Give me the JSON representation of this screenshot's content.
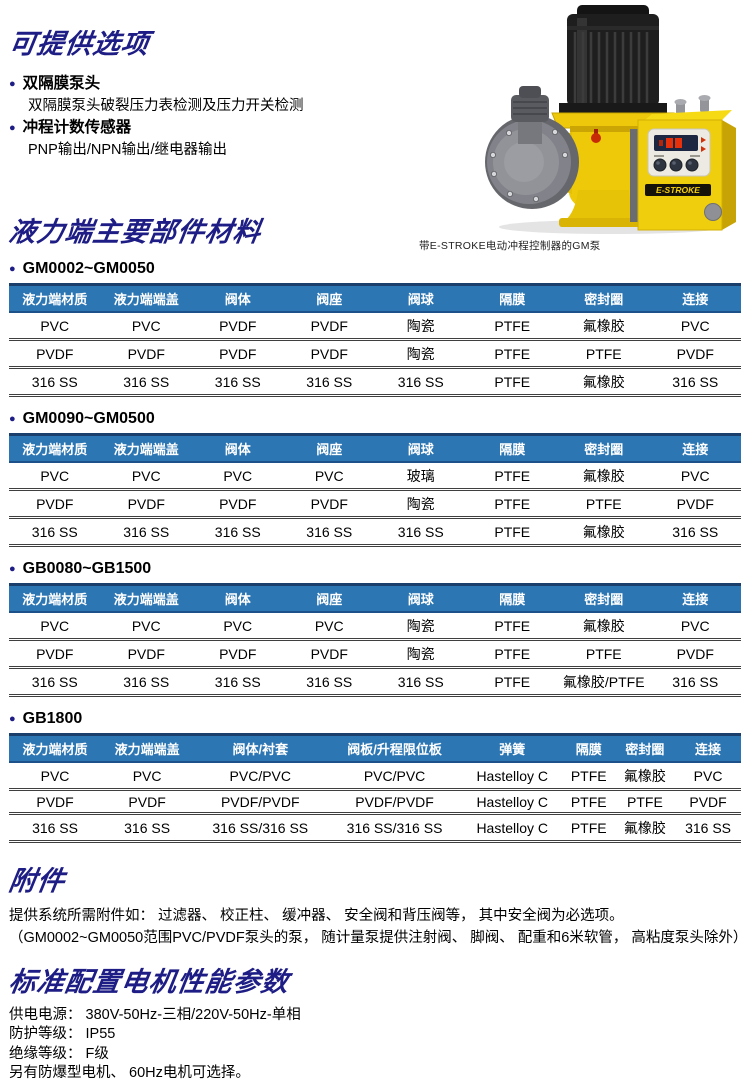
{
  "colors": {
    "title_navy": "#1d1d85",
    "header_blue": "#2d76b4",
    "header_border": "#1b3f6c",
    "pump_yellow": "#eec90a",
    "led_red": "#e8310a"
  },
  "options_section": {
    "title": "可提供选项",
    "items": [
      {
        "label": "双隔膜泵头",
        "desc": "双隔膜泵头破裂压力表检测及压力开关检测"
      },
      {
        "label": "冲程计数传感器",
        "desc": "PNP输出/NPN输出/继电器输出"
      }
    ]
  },
  "pump_figure": {
    "caption": "带E-STROKE电动冲程控制器的GM泵",
    "controller_label": "E-STROKE"
  },
  "materials_section": {
    "title": "液力端主要部件材料",
    "tables": [
      {
        "model": "GM0002~GM0050",
        "headers": [
          "液力端材质",
          "液力端端盖",
          "阀体",
          "阀座",
          "阀球",
          "隔膜",
          "密封圈",
          "连接"
        ],
        "rows": [
          [
            "PVC",
            "PVC",
            "PVDF",
            "PVDF",
            "陶瓷",
            "PTFE",
            "氟橡胶",
            "PVC"
          ],
          [
            "PVDF",
            "PVDF",
            "PVDF",
            "PVDF",
            "陶瓷",
            "PTFE",
            "PTFE",
            "PVDF"
          ],
          [
            "316 SS",
            "316 SS",
            "316 SS",
            "316 SS",
            "316 SS",
            "PTFE",
            "氟橡胶",
            "316 SS"
          ]
        ]
      },
      {
        "model": "GM0090~GM0500",
        "headers": [
          "液力端材质",
          "液力端端盖",
          "阀体",
          "阀座",
          "阀球",
          "隔膜",
          "密封圈",
          "连接"
        ],
        "rows": [
          [
            "PVC",
            "PVC",
            "PVC",
            "PVC",
            "玻璃",
            "PTFE",
            "氟橡胶",
            "PVC"
          ],
          [
            "PVDF",
            "PVDF",
            "PVDF",
            "PVDF",
            "陶瓷",
            "PTFE",
            "PTFE",
            "PVDF"
          ],
          [
            "316 SS",
            "316 SS",
            "316 SS",
            "316 SS",
            "316 SS",
            "PTFE",
            "氟橡胶",
            "316 SS"
          ]
        ]
      },
      {
        "model": "GB0080~GB1500",
        "headers": [
          "液力端材质",
          "液力端端盖",
          "阀体",
          "阀座",
          "阀球",
          "隔膜",
          "密封圈",
          "连接"
        ],
        "rows": [
          [
            "PVC",
            "PVC",
            "PVC",
            "PVC",
            "陶瓷",
            "PTFE",
            "氟橡胶",
            "PVC"
          ],
          [
            "PVDF",
            "PVDF",
            "PVDF",
            "PVDF",
            "陶瓷",
            "PTFE",
            "PTFE",
            "PVDF"
          ],
          [
            "316 SS",
            "316 SS",
            "316 SS",
            "316 SS",
            "316 SS",
            "PTFE",
            "氟橡胶/PTFE",
            "316 SS"
          ]
        ]
      },
      {
        "model": "GB1800",
        "headers": [
          "液力端材质",
          "液力端端盖",
          "阀体/衬套",
          "阀板/升程限位板",
          "弹簧",
          "隔膜",
          "密封圈",
          "连接"
        ],
        "rows": [
          [
            "PVC",
            "PVC",
            "PVC/PVC",
            "PVC/PVC",
            "Hastelloy C",
            "PTFE",
            "氟橡胶",
            "PVC"
          ],
          [
            "PVDF",
            "PVDF",
            "PVDF/PVDF",
            "PVDF/PVDF",
            "Hastelloy C",
            "PTFE",
            "PTFE",
            "PVDF"
          ],
          [
            "316 SS",
            "316 SS",
            "316 SS/316 SS",
            "316 SS/316 SS",
            "Hastelloy C",
            "PTFE",
            "氟橡胶",
            "316 SS"
          ]
        ]
      }
    ]
  },
  "accessories_section": {
    "title": "附件",
    "line1": "提供系统所需附件如： 过滤器、 校正柱、 缓冲器、 安全阀和背压阀等， 其中安全阀为必选项。",
    "line2": "（GM0002~GM0050范围PVC/PVDF泵头的泵， 随计量泵提供注射阀、 脚阀、 配重和6米软管， 高粘度泵头除外）"
  },
  "motor_section": {
    "title": "标准配置电机性能参数",
    "lines": [
      "供电电源：  380V-50Hz-三相/220V-50Hz-单相",
      "防护等级：  IP55",
      "绝缘等级：  F级",
      "另有防爆型电机、 60Hz电机可选择。"
    ]
  }
}
